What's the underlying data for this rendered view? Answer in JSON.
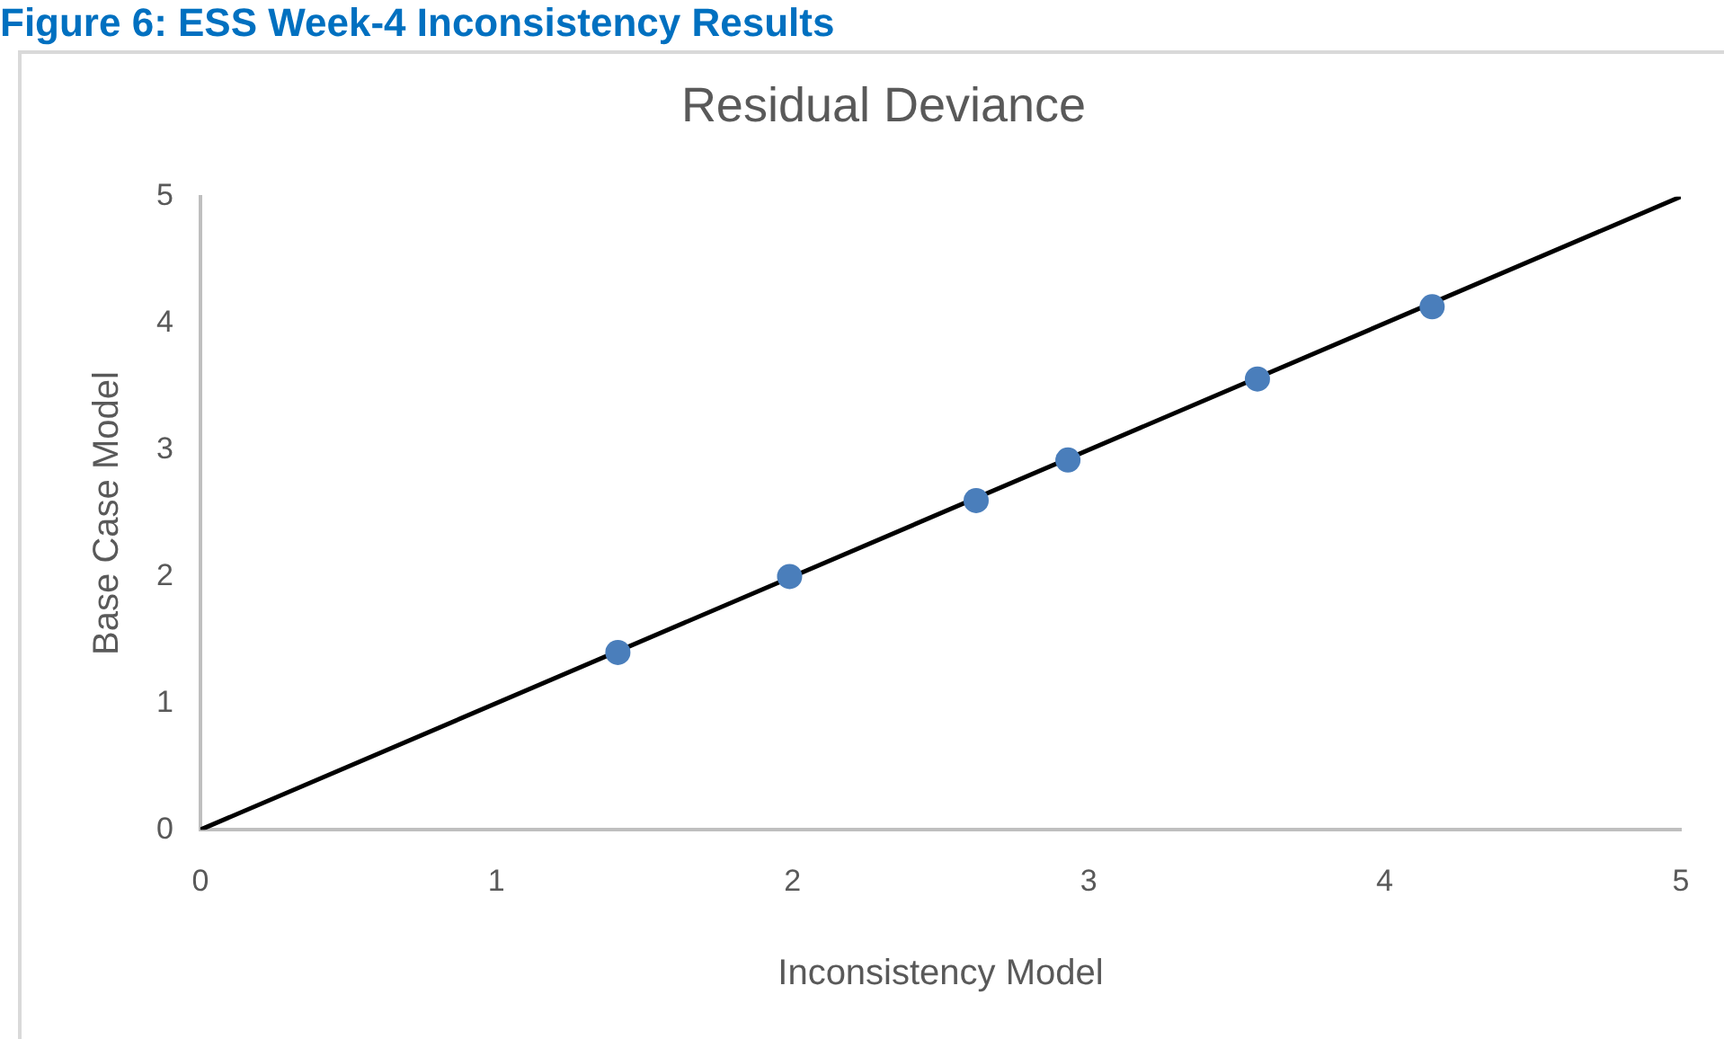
{
  "chart_data": {
    "type": "scatter",
    "title": "Residual Deviance",
    "xlabel": "Inconsistency Model",
    "ylabel": "Base Case Model",
    "annotations": [
      "Figure 6: ESS Week-4 Inconsistency Results"
    ],
    "xlim": [
      0,
      5
    ],
    "ylim": [
      0,
      5
    ],
    "xticks": [
      0,
      1,
      2,
      3,
      4,
      5
    ],
    "yticks": [
      0,
      1,
      2,
      3,
      4,
      5
    ],
    "grid": false,
    "legend": false,
    "marker": "circle",
    "series": [
      {
        "color": "#4a7ebb",
        "x": [
          1.41,
          1.99,
          2.62,
          2.93,
          3.57,
          4.16
        ],
        "values": [
          1.4,
          2.0,
          2.6,
          2.92,
          3.56,
          4.13
        ]
      },
      {
        "type": "line",
        "color": "#000000",
        "marker": "none",
        "x": [
          0,
          5
        ],
        "values": [
          0,
          5
        ]
      }
    ]
  }
}
